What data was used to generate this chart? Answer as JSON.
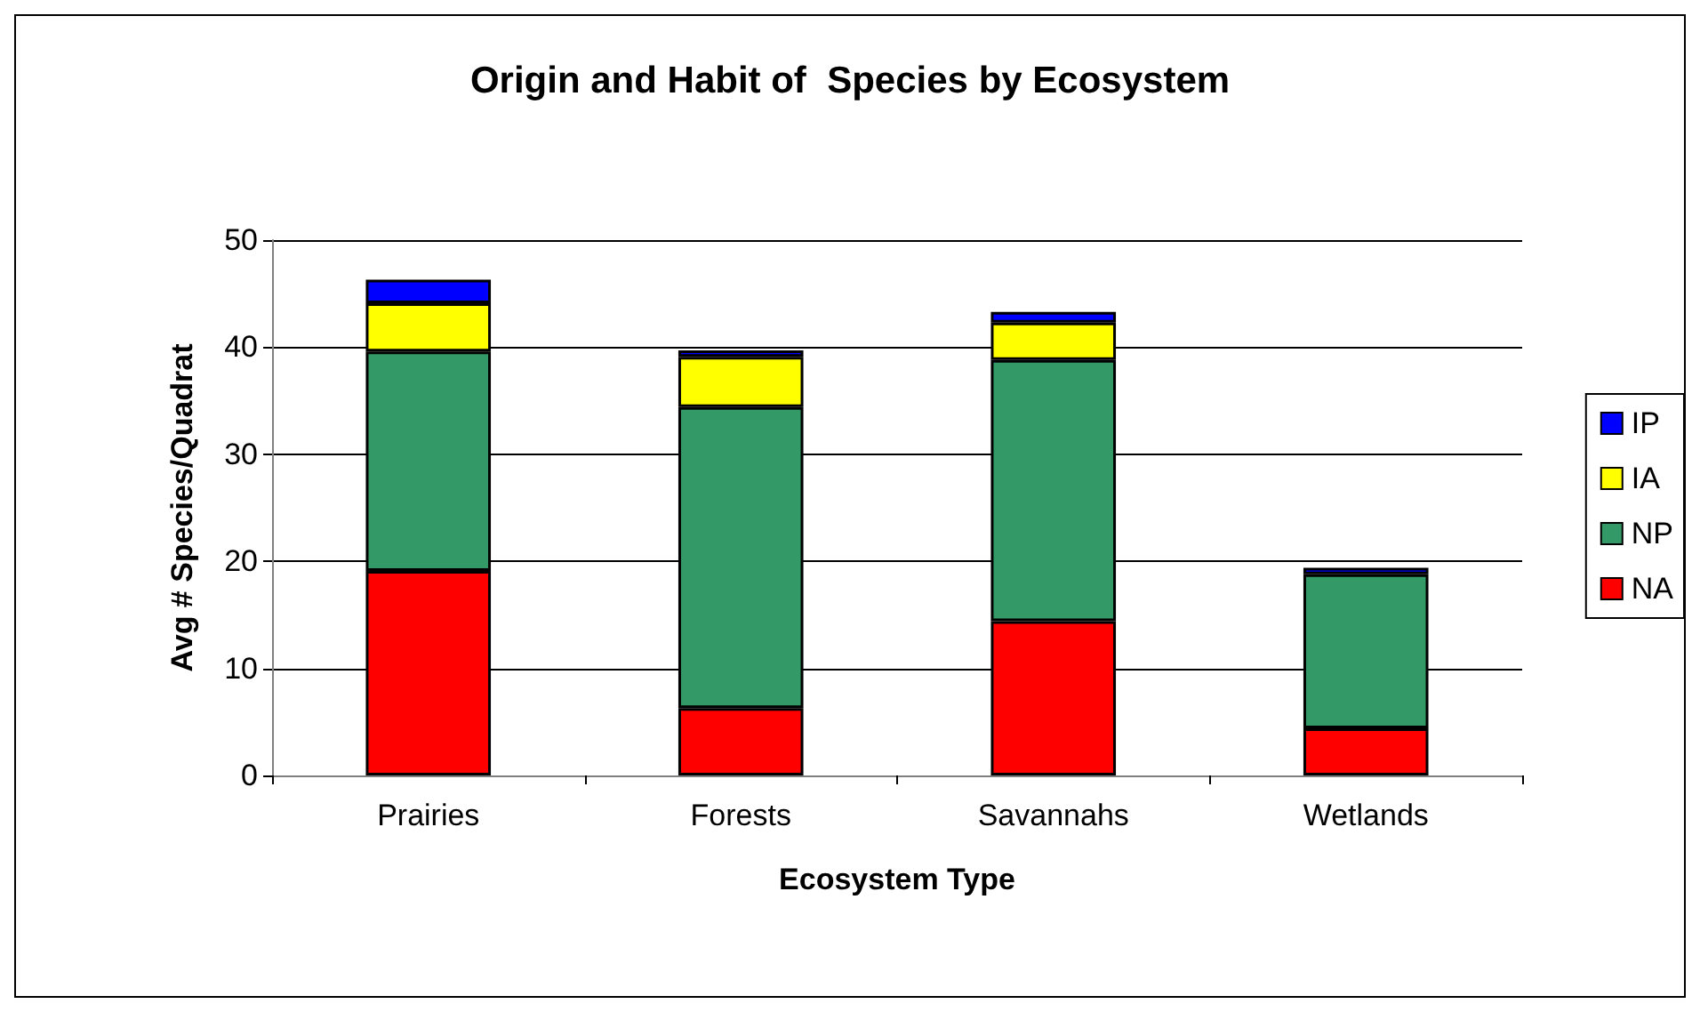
{
  "chart_data": {
    "type": "bar",
    "title": "Origin and Habit of  Species by Ecosystem",
    "xlabel": "Ecosystem Type",
    "ylabel": "Avg # Species/Quadrat",
    "categories": [
      "Prairies",
      "Forests",
      "Savannahs",
      "Wetlands"
    ],
    "stacked": true,
    "series": [
      {
        "name": "NA",
        "color": "#ff0000",
        "values": [
          19.1,
          6.3,
          14.4,
          4.4
        ]
      },
      {
        "name": "NP",
        "color": "#339966",
        "values": [
          20.5,
          28.1,
          24.4,
          14.4
        ]
      },
      {
        "name": "IA",
        "color": "#ffff00",
        "values": [
          4.5,
          4.7,
          3.5,
          null
        ]
      },
      {
        "name": "IP",
        "color": "#0000ff",
        "values": [
          2.2,
          0.6,
          1.0,
          0.6
        ]
      }
    ],
    "ylim": [
      0,
      50
    ],
    "yticks": [
      0,
      10,
      20,
      30,
      40,
      50
    ],
    "grid": "y",
    "legend": "right"
  }
}
